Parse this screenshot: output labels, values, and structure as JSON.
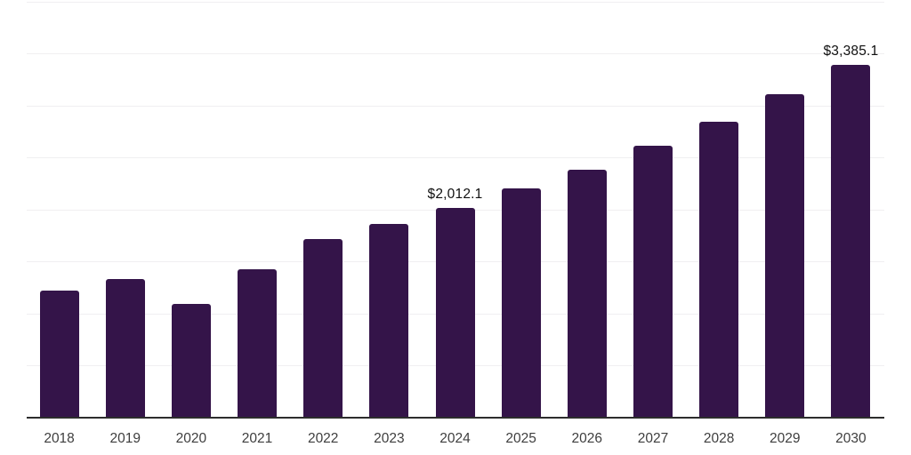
{
  "chart_data": {
    "type": "bar",
    "title": "",
    "xlabel": "",
    "ylabel": "",
    "categories": [
      "2018",
      "2019",
      "2020",
      "2021",
      "2022",
      "2023",
      "2024",
      "2025",
      "2026",
      "2027",
      "2028",
      "2029",
      "2030"
    ],
    "values": [
      1222,
      1333,
      1087,
      1425,
      1716,
      1858,
      2012.1,
      2204,
      2380,
      2609,
      2843,
      3105,
      3385.1
    ],
    "data_labels": [
      null,
      null,
      null,
      null,
      null,
      null,
      "$2,012.1",
      null,
      null,
      null,
      null,
      null,
      "$3,385.1"
    ],
    "ylim": [
      0,
      4000
    ],
    "gridline_step": 500,
    "grid": true,
    "legend": false,
    "y_axis_labels_shown": false,
    "colors": {
      "bar": "#341449",
      "gridline": "#f0eff1",
      "axis_line": "#2d2d2d",
      "data_label_text": "#101010",
      "tick_label_text": "#3e3e3e",
      "background": "#ffffff"
    }
  }
}
